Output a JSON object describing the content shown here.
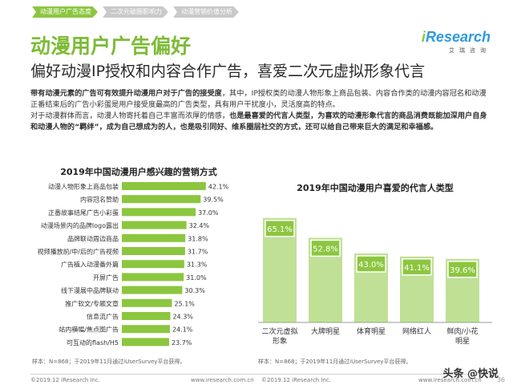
{
  "nav": {
    "tabs": [
      {
        "label": "动漫用户广告态度",
        "active": true
      },
      {
        "label": "二次元破圈影响力",
        "active": false
      },
      {
        "label": "动漫营销价值分析",
        "active": false
      }
    ]
  },
  "logo": {
    "brand_i": "i",
    "brand_rest": "Research",
    "sub": "艾瑞咨询"
  },
  "header": {
    "title": "动漫用户广告偏好",
    "subtitle": "偏好动漫IP授权和内容合作广告，喜爱二次元虚拟形象代言"
  },
  "intro": {
    "p1_bold": "带有动漫元素的广告可有效提升动漫用户对于广告的接受度",
    "p1_rest": "，其中，IP授权类的动漫人物形象上商品包装、内容合作类的动漫内容冠名和动漫正番结束后的广告小彩蛋是用户接受度最高的广告类型，具有用户干扰度小，灵活度高的特点。",
    "p2_plain": "对于动漫群体而言，动漫人物寄托着自己丰富而浓厚的情感，",
    "p2_bold": "也是最喜爱的代言人类型，为喜欢的动漫形象代言的商品消费既能加深用户自身和动漫人物的“羁绊”，成为自己想成为的人，也是吸引同好、维系圈层社交的方式，还可以给自己带来巨大的满足和幸福感。"
  },
  "colors": {
    "bar": "#8cc63f",
    "label_box": "#8cc63f",
    "accent_green": "#7dbb36",
    "brand_blue": "#2e9ae0"
  },
  "chart_data": [
    {
      "type": "bar",
      "orientation": "horizontal",
      "title": "2019年中国动漫用户感兴趣的营销方式",
      "categories": [
        "动漫人物形象上商品包装",
        "内容冠名赞助",
        "正番故事结尾广告小彩蛋",
        "动漫场景内的品牌logo露出",
        "品牌联动周边商品",
        "视频播放前/中/后的广告视频",
        "广告植入动漫番外篇",
        "开屏广告",
        "线下漫展中品牌联动",
        "推广软文/专题文章",
        "信息流广告",
        "站内横幅/焦点图广告",
        "可互动的flash/H5"
      ],
      "values": [
        42.1,
        39.5,
        37.0,
        32.4,
        31.8,
        31.7,
        31.3,
        31.0,
        30.3,
        25.1,
        24.3,
        24.1,
        23.7
      ],
      "value_labels": [
        "42.1%",
        "39.5%",
        "37.0%",
        "32.4%",
        "31.8%",
        "31.7%",
        "31.3%",
        "31.0%",
        "30.3%",
        "25.1%",
        "24.3%",
        "24.1%",
        "23.7%"
      ],
      "xlim": [
        0,
        45
      ],
      "note": "样本：N=868；于2019年11月通过iUserSurvey平台获得。"
    },
    {
      "type": "bar",
      "orientation": "vertical",
      "title": "2019年中国动漫用户喜爱的代言人类型",
      "categories": [
        "二次元虚拟形象",
        "大牌明星",
        "体育明星",
        "网络红人",
        "鲜肉/小花明星"
      ],
      "category_lines": [
        [
          "二次元虚拟",
          "形象"
        ],
        [
          "大牌明星"
        ],
        [
          "体育明星"
        ],
        [
          "网络红人"
        ],
        [
          "鲜肉/小花",
          "明星"
        ]
      ],
      "values": [
        65.1,
        52.8,
        43.0,
        41.1,
        39.6
      ],
      "value_labels": [
        "65.1%",
        "52.8%",
        "43.0%",
        "41.1%",
        "39.6%"
      ],
      "ylim": [
        0,
        70
      ],
      "note": "样本：N=868；于2019年11月通过iUserSurvey平台获得。"
    }
  ],
  "footer": {
    "left_copyright": "©2019.12 iResearch Inc.",
    "left_url": "www.iresearch.com.cn",
    "right_copyright": "©2019.12 iResearch Inc.",
    "right_url": "www.iresearch.com.cn",
    "page": "36"
  },
  "watermark": "头条 @快说"
}
